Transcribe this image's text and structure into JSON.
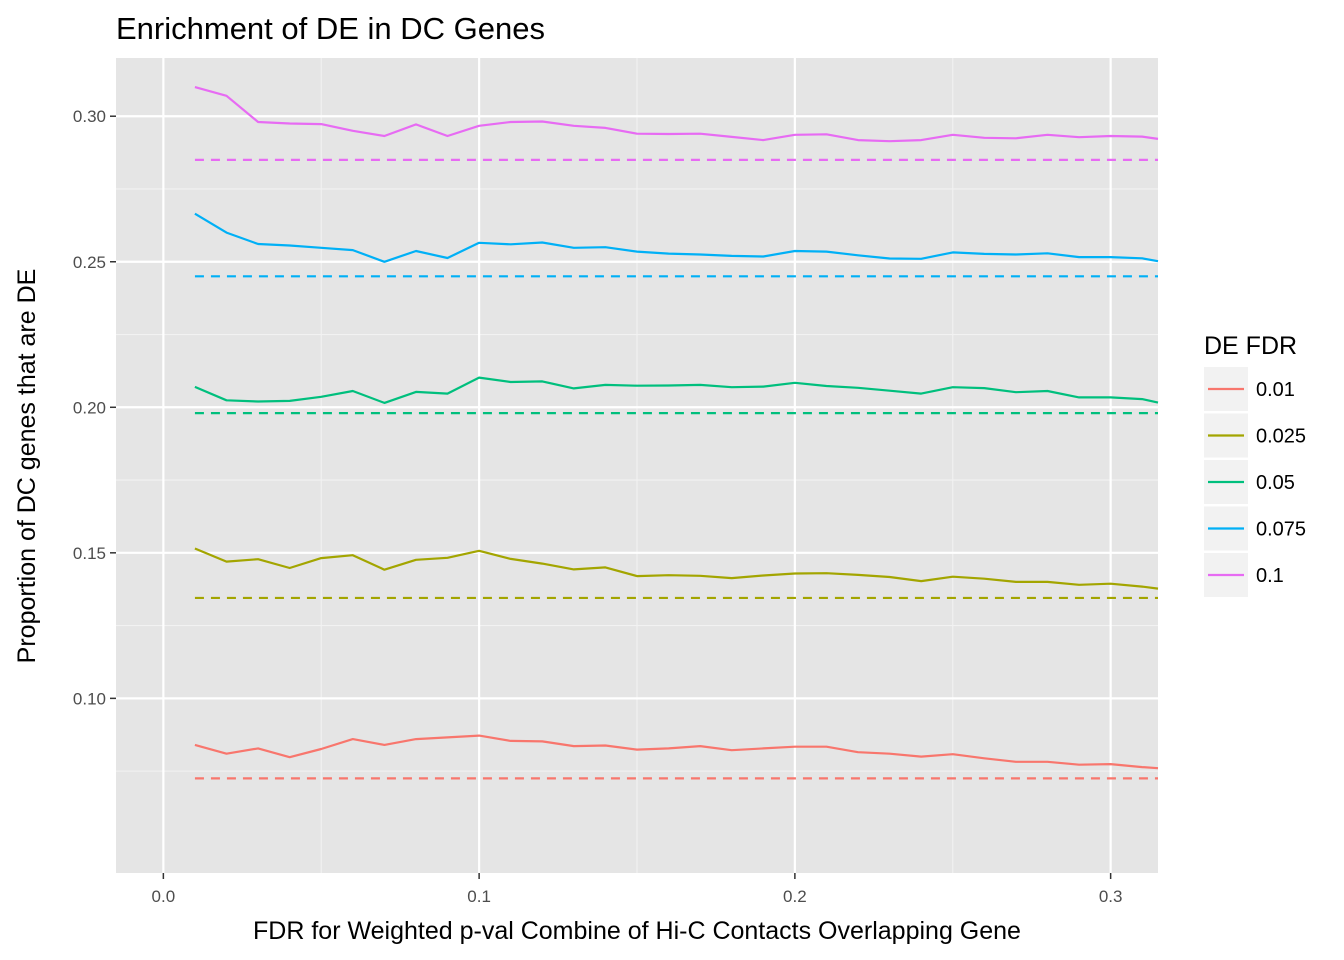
{
  "chart_data": {
    "type": "line",
    "title": "Enrichment of DE in DC Genes",
    "xlabel": "FDR for Weighted p-val Combine of Hi-C Contacts Overlapping Gene",
    "ylabel": "Proportion of DC genes that are DE",
    "xlim": [
      -0.015,
      0.315
    ],
    "ylim": [
      0.04,
      0.32
    ],
    "x_ticks": [
      0.0,
      0.1,
      0.2,
      0.3
    ],
    "x_tick_labels": [
      "0.0",
      "0.1",
      "0.2",
      "0.3"
    ],
    "y_ticks": [
      0.1,
      0.15,
      0.2,
      0.25,
      0.3
    ],
    "y_tick_labels": [
      "0.10",
      "0.15",
      "0.20",
      "0.25",
      "0.30"
    ],
    "grid": true,
    "background": "#e5e5e5",
    "legend": {
      "title": "DE FDR",
      "position": "right"
    },
    "x": [
      0.01,
      0.02,
      0.03,
      0.04,
      0.05,
      0.06,
      0.07,
      0.08,
      0.09,
      0.1,
      0.11,
      0.12,
      0.13,
      0.14,
      0.15,
      0.16,
      0.17,
      0.18,
      0.19,
      0.2,
      0.21,
      0.22,
      0.23,
      0.24,
      0.25,
      0.26,
      0.27,
      0.28,
      0.29,
      0.3,
      0.31,
      0.315
    ],
    "series": [
      {
        "name": "0.01",
        "color": "#f8766d",
        "baseline": 0.0725,
        "values": [
          0.084,
          0.081,
          0.0828,
          0.0798,
          0.0826,
          0.086,
          0.084,
          0.086,
          0.0866,
          0.0872,
          0.0854,
          0.0852,
          0.0836,
          0.0838,
          0.0824,
          0.0828,
          0.0836,
          0.0822,
          0.0828,
          0.0834,
          0.0834,
          0.0815,
          0.081,
          0.08,
          0.0808,
          0.0794,
          0.0782,
          0.0782,
          0.0772,
          0.0774,
          0.0764,
          0.076
        ]
      },
      {
        "name": "0.025",
        "color": "#a3a500",
        "baseline": 0.1345,
        "values": [
          0.1515,
          0.147,
          0.1478,
          0.1448,
          0.1482,
          0.1492,
          0.1442,
          0.1476,
          0.1483,
          0.1507,
          0.1479,
          0.1463,
          0.1443,
          0.145,
          0.142,
          0.1423,
          0.1421,
          0.1413,
          0.1422,
          0.1429,
          0.143,
          0.1424,
          0.1417,
          0.1403,
          0.1418,
          0.1411,
          0.14,
          0.14,
          0.139,
          0.1394,
          0.1384,
          0.1377
        ]
      },
      {
        "name": "0.05",
        "color": "#00bf7d",
        "baseline": 0.198,
        "values": [
          0.207,
          0.2024,
          0.202,
          0.2022,
          0.2036,
          0.2056,
          0.2015,
          0.2053,
          0.2047,
          0.2102,
          0.2087,
          0.2089,
          0.2065,
          0.2077,
          0.2074,
          0.2075,
          0.2077,
          0.2069,
          0.2071,
          0.2084,
          0.2073,
          0.2067,
          0.2057,
          0.2047,
          0.2069,
          0.2066,
          0.2052,
          0.2056,
          0.2034,
          0.2034,
          0.2028,
          0.2016
        ]
      },
      {
        "name": "0.075",
        "color": "#00b0f6",
        "baseline": 0.245,
        "values": [
          0.2665,
          0.26,
          0.2561,
          0.2556,
          0.2548,
          0.254,
          0.25,
          0.2537,
          0.2513,
          0.2565,
          0.256,
          0.2566,
          0.2548,
          0.255,
          0.2535,
          0.2528,
          0.2525,
          0.252,
          0.2518,
          0.2537,
          0.2535,
          0.2522,
          0.2511,
          0.251,
          0.2532,
          0.2527,
          0.2525,
          0.2529,
          0.2516,
          0.2516,
          0.2512,
          0.2502
        ]
      },
      {
        "name": "0.1",
        "color": "#e76bf3",
        "baseline": 0.285,
        "values": [
          0.31,
          0.307,
          0.298,
          0.2975,
          0.2973,
          0.295,
          0.2932,
          0.2972,
          0.2932,
          0.2967,
          0.298,
          0.2982,
          0.2967,
          0.296,
          0.294,
          0.2939,
          0.294,
          0.2929,
          0.2918,
          0.2936,
          0.2938,
          0.2918,
          0.2914,
          0.2918,
          0.2936,
          0.2926,
          0.2924,
          0.2936,
          0.2928,
          0.2932,
          0.293,
          0.2922
        ]
      }
    ]
  }
}
